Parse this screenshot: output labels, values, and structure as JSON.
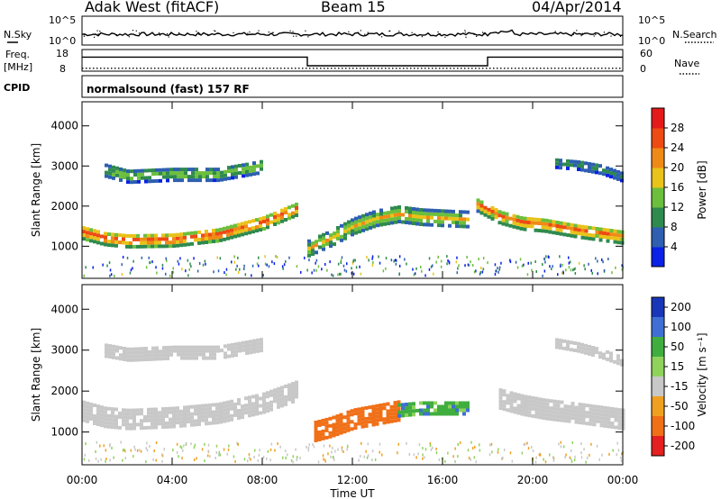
{
  "header": {
    "station": "Adak West (fitACF)",
    "beam": "Beam 15",
    "date": "04/Apr/2014"
  },
  "noise_panel": {
    "left_label": "N.Sky",
    "right_label": "N.Search",
    "left_ticks": [
      "10^5",
      "10^0"
    ],
    "right_ticks": [
      "10^5",
      "10^0"
    ]
  },
  "freq_panel": {
    "left_label_1": "Freq.",
    "left_label_2": "[MHz]",
    "right_label": "Nave",
    "left_ticks": [
      "18",
      "8"
    ],
    "right_ticks": [
      "60",
      "0"
    ],
    "freq_steps": [
      {
        "t_start": 0,
        "t_end": 10,
        "freq_mhz": 14.5
      },
      {
        "t_start": 10,
        "t_end": 18,
        "freq_mhz": 10.5
      },
      {
        "t_start": 18,
        "t_end": 24,
        "freq_mhz": 14.5
      }
    ],
    "nave_level": 8
  },
  "cpid": {
    "label": "CPID",
    "program": "normalsound (fast) 157 RF"
  },
  "chart_data": [
    {
      "type": "heatmap",
      "name": "power",
      "ylabel": "Slant Range [km]",
      "xlim": [
        0,
        24
      ],
      "ylim": [
        200,
        4600
      ],
      "yticks": [
        "1000",
        "2000",
        "3000",
        "4000"
      ],
      "colorbar": {
        "label": "Power [dB]",
        "ticks": [
          "4",
          "8",
          "12",
          "16",
          "20",
          "24",
          "28"
        ],
        "range": [
          0,
          30
        ],
        "colors": [
          "#0a21e6",
          "#2e5fb0",
          "#2f8a4e",
          "#6cbf3c",
          "#e9c21a",
          "#f08a16",
          "#ee4a14",
          "#e41a1a"
        ]
      },
      "bands": [
        {
          "desc": "lower echo",
          "t": [
            0,
            1,
            2,
            4,
            6,
            8,
            9.5
          ],
          "range_km": [
            1300,
            1150,
            1100,
            1120,
            1250,
            1550,
            1900
          ],
          "width_km": 320,
          "power_db": 27
        },
        {
          "desc": "upper echo",
          "t": [
            1,
            2,
            4,
            6,
            8
          ],
          "range_km": [
            2850,
            2700,
            2750,
            2750,
            2950
          ],
          "width_km": 300,
          "power_db": 16
        },
        {
          "desc": "midday echo",
          "t": [
            10,
            11,
            12,
            13,
            14,
            15,
            16,
            17.2
          ],
          "range_km": [
            900,
            1150,
            1450,
            1650,
            1750,
            1680,
            1650,
            1620
          ],
          "width_km": 360,
          "power_db": 20
        },
        {
          "desc": "evening echo",
          "t": [
            17.5,
            18.5,
            19.5,
            20.5,
            22,
            24
          ],
          "range_km": [
            2000,
            1700,
            1550,
            1500,
            1350,
            1200
          ],
          "width_km": 340,
          "power_db": 25
        },
        {
          "desc": "late upper echo",
          "t": [
            21,
            22,
            23,
            24
          ],
          "range_km": [
            3050,
            3000,
            2900,
            2700
          ],
          "width_km": 260,
          "power_db": 12
        }
      ]
    },
    {
      "type": "heatmap",
      "name": "velocity",
      "xlabel": "Time UT",
      "ylabel": "Slant Range [km]",
      "xlim": [
        0,
        24
      ],
      "ylim": [
        200,
        4600
      ],
      "xticks": [
        "00:00",
        "04:00",
        "08:00",
        "12:00",
        "16:00",
        "20:00",
        "00:00"
      ],
      "yticks": [
        "1000",
        "2000",
        "3000",
        "4000"
      ],
      "colorbar": {
        "label": "Velocity [m s⁻¹]",
        "ticks": [
          "200",
          "100",
          "50",
          "15",
          "-15",
          "-50",
          "-100",
          "-200"
        ],
        "colors": [
          "#1836b8",
          "#3f6fd4",
          "#3fae3f",
          "#8fd35b",
          "#c8c8c8",
          "#f0a020",
          "#f07018",
          "#e42020"
        ]
      },
      "bands": [
        {
          "desc": "lower echo",
          "t": [
            0,
            1,
            2,
            4,
            6,
            8,
            9.5
          ],
          "range_km": [
            1500,
            1350,
            1300,
            1350,
            1450,
            1700,
            2000
          ],
          "width_km": 520,
          "velocity_ms": 0
        },
        {
          "desc": "upper echo",
          "t": [
            1,
            2,
            4,
            6,
            8
          ],
          "range_km": [
            2950,
            2850,
            2900,
            2900,
            3100
          ],
          "width_km": 280,
          "velocity_ms": 0
        },
        {
          "desc": "midday echo",
          "t": [
            10.3,
            11,
            12,
            13,
            14
          ],
          "range_km": [
            1000,
            1100,
            1300,
            1400,
            1500
          ],
          "width_km": 500,
          "velocity_ms": -70
        },
        {
          "desc": "afternoon echo",
          "t": [
            14,
            15,
            16,
            17.2
          ],
          "range_km": [
            1500,
            1550,
            1550,
            1550
          ],
          "width_km": 300,
          "velocity_ms": 40
        },
        {
          "desc": "evening echo",
          "t": [
            18.5,
            19.5,
            20.5,
            22,
            24
          ],
          "range_km": [
            1800,
            1650,
            1550,
            1450,
            1300
          ],
          "width_km": 520,
          "velocity_ms": 0
        },
        {
          "desc": "late upper echo",
          "t": [
            21,
            22,
            23,
            24
          ],
          "range_km": [
            3150,
            3050,
            2900,
            2700
          ],
          "width_km": 240,
          "velocity_ms": 0
        }
      ]
    }
  ]
}
